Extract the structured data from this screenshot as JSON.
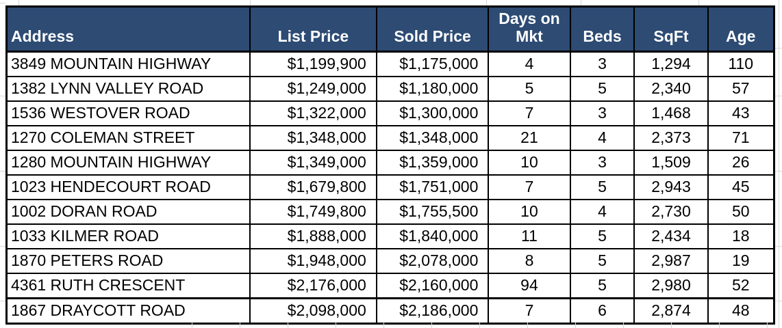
{
  "table": {
    "column_headers": [
      "Address",
      "List Price",
      "Sold Price",
      "Days on Mkt",
      "Beds",
      "SqFt",
      "Age"
    ],
    "rows": [
      [
        "3849 MOUNTAIN HIGHWAY",
        "$1,199,900",
        "$1,175,000",
        "4",
        "3",
        "1,294",
        "110"
      ],
      [
        "1382 LYNN VALLEY ROAD",
        "$1,249,000",
        "$1,180,000",
        "5",
        "5",
        "2,340",
        "57"
      ],
      [
        "1536 WESTOVER ROAD",
        "$1,322,000",
        "$1,300,000",
        "7",
        "3",
        "1,468",
        "43"
      ],
      [
        "1270 COLEMAN STREET",
        "$1,348,000",
        "$1,348,000",
        "21",
        "4",
        "2,373",
        "71"
      ],
      [
        "1280 MOUNTAIN HIGHWAY",
        "$1,349,000",
        "$1,359,000",
        "10",
        "3",
        "1,509",
        "26"
      ],
      [
        "1023 HENDECOURT ROAD",
        "$1,679,800",
        "$1,751,000",
        "7",
        "5",
        "2,943",
        "45"
      ],
      [
        "1002 DORAN ROAD",
        "$1,749,800",
        "$1,755,500",
        "10",
        "4",
        "2,730",
        "50"
      ],
      [
        "1033 KILMER ROAD",
        "$1,888,000",
        "$1,840,000",
        "11",
        "5",
        "2,434",
        "18"
      ],
      [
        "1870 PETERS ROAD",
        "$1,948,000",
        "$2,078,000",
        "8",
        "5",
        "2,987",
        "19"
      ],
      [
        "4361 RUTH CRESCENT",
        "$2,176,000",
        "$2,160,000",
        "94",
        "5",
        "2,980",
        "52"
      ],
      [
        "1867 DRAYCOTT ROAD",
        "$2,098,000",
        "$2,186,000",
        "7",
        "6",
        "2,874",
        "48"
      ]
    ]
  },
  "colors": {
    "header_bg": "#2D4B73",
    "header_text": "#FFFFFF",
    "body_bg": "#FFFFFF",
    "body_text": "#000000",
    "table_border": "#000000",
    "gridline": "#D8D8D8"
  }
}
